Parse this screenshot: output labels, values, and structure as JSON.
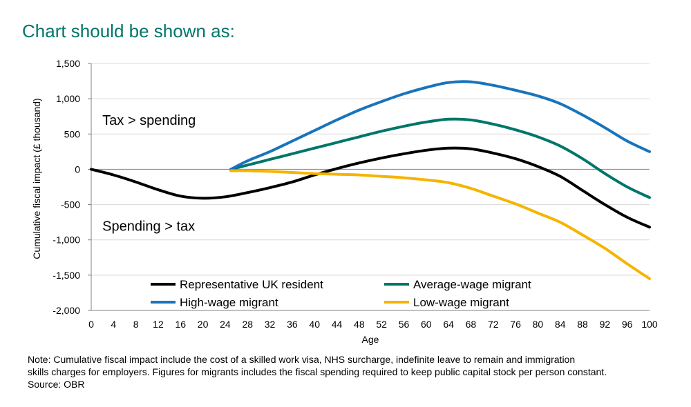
{
  "page": {
    "heading": "Chart should be shown as:",
    "note_lines": [
      "Note: Cumulative fiscal impact include the cost of a skilled work visa, NHS surcharge, indefinite leave to remain and immigration",
      "skills charges for employers. Figures for migrants includes the fiscal spending required to keep public capital stock per person constant.",
      "Source: OBR"
    ]
  },
  "chart_data": {
    "type": "line",
    "title": "",
    "xlabel": "Age",
    "ylabel": "Cumulative fiscal impact (£ thousand)",
    "xlim": [
      0,
      100
    ],
    "ylim": [
      -2000,
      1500
    ],
    "x_ticks": [
      0,
      4,
      8,
      12,
      16,
      20,
      24,
      28,
      32,
      36,
      40,
      44,
      48,
      52,
      56,
      60,
      64,
      68,
      72,
      76,
      80,
      84,
      88,
      92,
      96,
      100
    ],
    "y_ticks": [
      -2000,
      -1500,
      -1000,
      -500,
      0,
      500,
      1000,
      1500
    ],
    "y_tick_labels": [
      "-2,000",
      "-1,500",
      "-1,000",
      "-500",
      "0",
      "500",
      "1,000",
      "1,500"
    ],
    "gridlines": true,
    "annotations": [
      {
        "text": "Tax > spending",
        "x": 2,
        "y": 700
      },
      {
        "text": "Spending > tax",
        "x": 2,
        "y": -800
      }
    ],
    "legend_position": "bottom-center",
    "series": [
      {
        "name": "Representative UK resident",
        "color": "#000000",
        "x": [
          0,
          4,
          8,
          12,
          16,
          20,
          24,
          28,
          32,
          36,
          40,
          44,
          48,
          52,
          56,
          60,
          64,
          68,
          72,
          76,
          80,
          84,
          88,
          92,
          96,
          100
        ],
        "y": [
          0,
          -80,
          -180,
          -290,
          -380,
          -410,
          -390,
          -330,
          -260,
          -180,
          -80,
          10,
          90,
          160,
          220,
          270,
          300,
          290,
          230,
          150,
          40,
          -100,
          -300,
          -500,
          -680,
          -820
        ]
      },
      {
        "name": "Average-wage migrant",
        "color": "#00766a",
        "x": [
          25,
          28,
          32,
          36,
          40,
          44,
          48,
          52,
          56,
          60,
          64,
          68,
          72,
          76,
          80,
          84,
          88,
          92,
          96,
          100
        ],
        "y": [
          0,
          60,
          140,
          220,
          300,
          380,
          460,
          540,
          610,
          670,
          710,
          700,
          640,
          560,
          460,
          330,
          150,
          -60,
          -250,
          -400
        ]
      },
      {
        "name": "High-wage migrant",
        "color": "#1874bc",
        "x": [
          25,
          28,
          32,
          36,
          40,
          44,
          48,
          52,
          56,
          60,
          64,
          68,
          72,
          76,
          80,
          84,
          88,
          92,
          96,
          100
        ],
        "y": [
          0,
          120,
          250,
          400,
          550,
          700,
          840,
          960,
          1070,
          1160,
          1230,
          1240,
          1190,
          1120,
          1040,
          930,
          770,
          590,
          400,
          250
        ]
      },
      {
        "name": "Low-wage migrant",
        "color": "#f5b400",
        "x": [
          25,
          28,
          32,
          36,
          40,
          44,
          48,
          52,
          56,
          60,
          64,
          68,
          72,
          76,
          80,
          84,
          88,
          92,
          96,
          100
        ],
        "y": [
          -20,
          -20,
          -30,
          -45,
          -60,
          -70,
          -80,
          -100,
          -120,
          -150,
          -190,
          -270,
          -380,
          -490,
          -620,
          -750,
          -930,
          -1120,
          -1340,
          -1550
        ]
      }
    ]
  }
}
